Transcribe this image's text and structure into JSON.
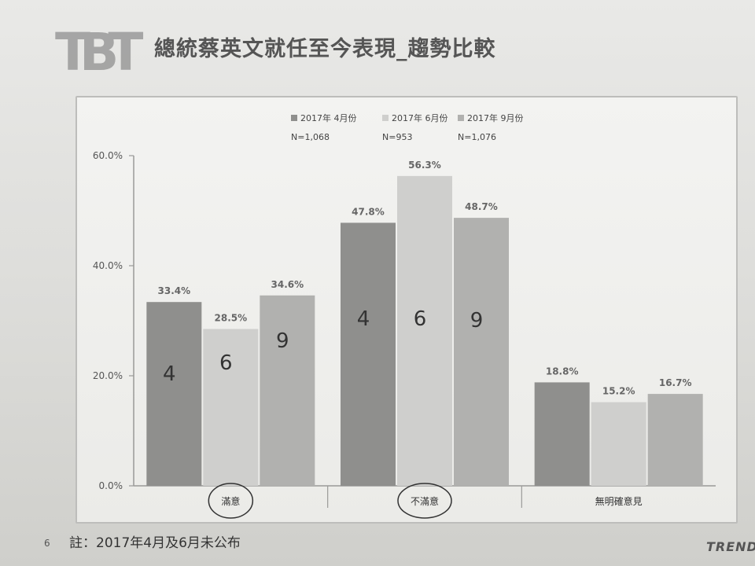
{
  "logo_text": "TBT",
  "page_title": "總統蔡英文就任至今表現_趨勢比較",
  "page_number": "6",
  "footnote": "註：2017年4月及6月未公布",
  "brand": "TREND",
  "colors": {
    "series_apr": "#8f8f8d",
    "series_jun": "#cfcfcd",
    "series_sep": "#b1b1af",
    "axis": "#9a9a98",
    "circle": "#333333"
  },
  "chart_data": {
    "type": "bar",
    "categories": [
      "滿意",
      "不滿意",
      "無明確意見"
    ],
    "series": [
      {
        "name": "2017年 4月份",
        "sample": "N=1,068",
        "values": [
          33.4,
          47.8,
          18.8
        ],
        "labels": [
          "33.4%",
          "47.8%",
          "18.8%"
        ]
      },
      {
        "name": "2017年 6月份",
        "sample": "N=953",
        "values": [
          28.5,
          56.3,
          15.2
        ],
        "labels": [
          "28.5%",
          "56.3%",
          "15.2%"
        ]
      },
      {
        "name": "2017年 9月份",
        "sample": "N=1,076",
        "values": [
          34.6,
          48.7,
          16.7
        ],
        "labels": [
          "34.6%",
          "48.7%",
          "16.7%"
        ]
      }
    ],
    "y_ticks": [
      0,
      20,
      40,
      60
    ],
    "y_tick_labels": [
      "0.0%",
      "20.0%",
      "40.0%",
      "60.0%"
    ],
    "ylim": [
      0,
      60
    ],
    "legend_position": "top",
    "gridlines": false,
    "handwritten_marks": {
      "bar_digits": [
        [
          "4",
          "6",
          "9"
        ],
        [
          "4",
          "6",
          "9"
        ]
      ],
      "circled_categories": [
        0,
        1
      ]
    }
  }
}
